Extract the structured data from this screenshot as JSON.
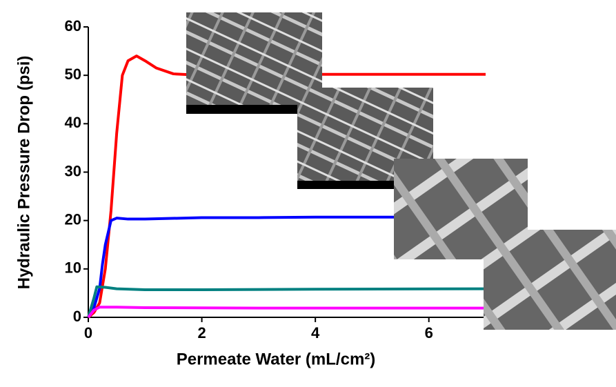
{
  "chart_data": {
    "type": "line",
    "xlabel": "Permeate Water (mL/cm²)",
    "ylabel": "Hydraulic Pressure Drop (psi)",
    "xlim": [
      0,
      7
    ],
    "xticks": [
      0,
      2,
      4,
      6
    ],
    "ylim": [
      0,
      60
    ],
    "yticks": [
      0,
      10,
      20,
      30,
      40,
      50,
      60
    ],
    "series": [
      {
        "color": "#ff0000",
        "x": [
          0,
          0.1,
          0.2,
          0.3,
          0.4,
          0.5,
          0.6,
          0.7,
          0.85,
          1.0,
          1.2,
          1.5,
          2,
          3,
          4,
          5,
          6,
          7
        ],
        "values": [
          0,
          1,
          3,
          10,
          22,
          38,
          50,
          53,
          54,
          53,
          51.5,
          50.3,
          50,
          50,
          50.2,
          50.2,
          50.2,
          50.2
        ]
      },
      {
        "color": "#0000ff",
        "x": [
          0,
          0.1,
          0.2,
          0.25,
          0.3,
          0.4,
          0.5,
          0.7,
          1,
          2,
          3,
          4,
          5,
          7
        ],
        "values": [
          0,
          2,
          6,
          11,
          15,
          20,
          20.5,
          20.3,
          20.3,
          20.6,
          20.6,
          20.7,
          20.7,
          20.7
        ]
      },
      {
        "color": "#008080",
        "x": [
          0,
          0.1,
          0.15,
          0.3,
          0.5,
          1,
          2,
          4,
          7
        ],
        "values": [
          0,
          4,
          6.3,
          6.2,
          5.9,
          5.7,
          5.7,
          5.8,
          5.9
        ]
      },
      {
        "color": "#ff00ff",
        "x": [
          0,
          0.1,
          0.2,
          0.5,
          1,
          3,
          7
        ],
        "values": [
          0,
          1.5,
          2.1,
          2.1,
          2,
          1.9,
          1.9
        ]
      }
    ]
  }
}
